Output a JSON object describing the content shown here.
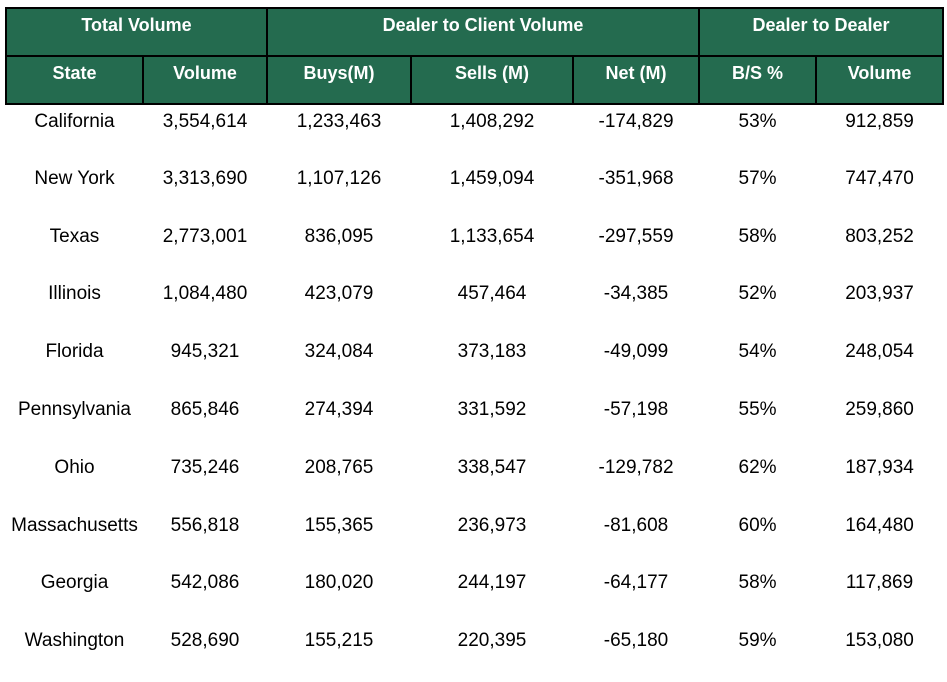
{
  "groups": [
    "Total Volume",
    "Dealer to Client Volume",
    "Dealer to Dealer"
  ],
  "columns": [
    "State",
    "Volume",
    "Buys(M)",
    "Sells (M)",
    "Net (M)",
    "B/S %",
    "Volume"
  ],
  "rows": [
    [
      "California",
      "3,554,614",
      "1,233,463",
      "1,408,292",
      "-174,829",
      "53%",
      "912,859"
    ],
    [
      "New York",
      "3,313,690",
      "1,107,126",
      "1,459,094",
      "-351,968",
      "57%",
      "747,470"
    ],
    [
      "Texas",
      "2,773,001",
      "836,095",
      "1,133,654",
      "-297,559",
      "58%",
      "803,252"
    ],
    [
      "Illinois",
      "1,084,480",
      "423,079",
      "457,464",
      "-34,385",
      "52%",
      "203,937"
    ],
    [
      "Florida",
      "945,321",
      "324,084",
      "373,183",
      "-49,099",
      "54%",
      "248,054"
    ],
    [
      "Pennsylvania",
      "865,846",
      "274,394",
      "331,592",
      "-57,198",
      "55%",
      "259,860"
    ],
    [
      "Ohio",
      "735,246",
      "208,765",
      "338,547",
      "-129,782",
      "62%",
      "187,934"
    ],
    [
      "Massachusetts",
      "556,818",
      "155,365",
      "236,973",
      "-81,608",
      "60%",
      "164,480"
    ],
    [
      "Georgia",
      "542,086",
      "180,020",
      "244,197",
      "-64,177",
      "58%",
      "117,869"
    ],
    [
      "Washington",
      "528,690",
      "155,215",
      "220,395",
      "-65,180",
      "59%",
      "153,080"
    ]
  ],
  "colors": {
    "header_bg": "#246b4f",
    "header_text": "#ffffff",
    "border": "#000000"
  }
}
